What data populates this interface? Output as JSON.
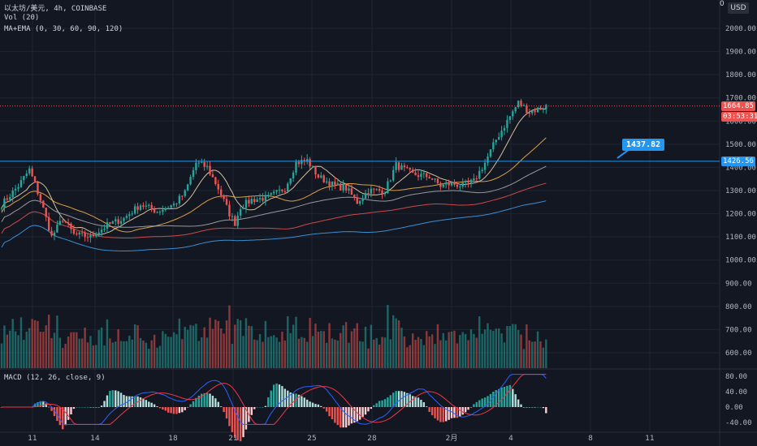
{
  "header": {
    "symbol_line": "以太坊/美元, 4h, COINBASE",
    "vol_line": "Vol (20)",
    "ma_line": "MA+EMA (0, 30, 60, 90, 120)",
    "macd_line": "MACD (12, 26, close, 9)",
    "currency": "USD",
    "corner": "0"
  },
  "price_labels": {
    "current_price": "1664.85",
    "countdown": "03:53:31",
    "line_price": "1426.56",
    "callout_price": "1437.82"
  },
  "colors": {
    "background": "#131722",
    "up": "#26a69a",
    "down": "#ef5350",
    "grid": "#1f2433",
    "text": "#b2b5be",
    "hline": "#2196f3",
    "current": "#ef5350",
    "macd": "#2962ff",
    "signal": "#f23645"
  },
  "chart_data": {
    "type": "candlestick",
    "title": "以太坊/美元, 4h, COINBASE",
    "price_axis": {
      "ticks": [
        600,
        700,
        800,
        900,
        1000,
        1100,
        1200,
        1300,
        1400,
        1500,
        1600,
        1700,
        1800,
        1900,
        2000
      ],
      "range": [
        560,
        2075
      ]
    },
    "macd_axis": {
      "ticks": [
        "80.00",
        "40.00",
        "0.00",
        "-40.00"
      ],
      "range": [
        -50,
        88
      ]
    },
    "x_axis": {
      "ticks": [
        "11",
        "14",
        "18",
        "21",
        "25",
        "28",
        "2月",
        "4",
        "8",
        "11"
      ]
    },
    "horizontal_line": 1426.56,
    "current_price": 1664.85,
    "callout": 1437.82,
    "waypoints": [
      [
        0,
        1240
      ],
      [
        6,
        1320
      ],
      [
        10,
        1390
      ],
      [
        14,
        1260
      ],
      [
        18,
        1100
      ],
      [
        22,
        1180
      ],
      [
        26,
        1110
      ],
      [
        32,
        1100
      ],
      [
        38,
        1150
      ],
      [
        44,
        1180
      ],
      [
        50,
        1240
      ],
      [
        56,
        1210
      ],
      [
        62,
        1240
      ],
      [
        66,
        1290
      ],
      [
        70,
        1420
      ],
      [
        74,
        1400
      ],
      [
        78,
        1310
      ],
      [
        82,
        1200
      ],
      [
        84,
        1160
      ],
      [
        86,
        1230
      ],
      [
        90,
        1260
      ],
      [
        96,
        1270
      ],
      [
        102,
        1310
      ],
      [
        106,
        1420
      ],
      [
        110,
        1430
      ],
      [
        114,
        1360
      ],
      [
        120,
        1320
      ],
      [
        124,
        1310
      ],
      [
        128,
        1250
      ],
      [
        132,
        1300
      ],
      [
        138,
        1300
      ],
      [
        142,
        1410
      ],
      [
        148,
        1370
      ],
      [
        154,
        1360
      ],
      [
        158,
        1320
      ],
      [
        162,
        1330
      ],
      [
        166,
        1320
      ],
      [
        170,
        1340
      ],
      [
        174,
        1420
      ],
      [
        178,
        1520
      ],
      [
        182,
        1600
      ],
      [
        186,
        1680
      ],
      [
        190,
        1640
      ],
      [
        194,
        1655
      ],
      [
        196,
        1665
      ]
    ],
    "volume_range": [
      560,
      905
    ]
  }
}
